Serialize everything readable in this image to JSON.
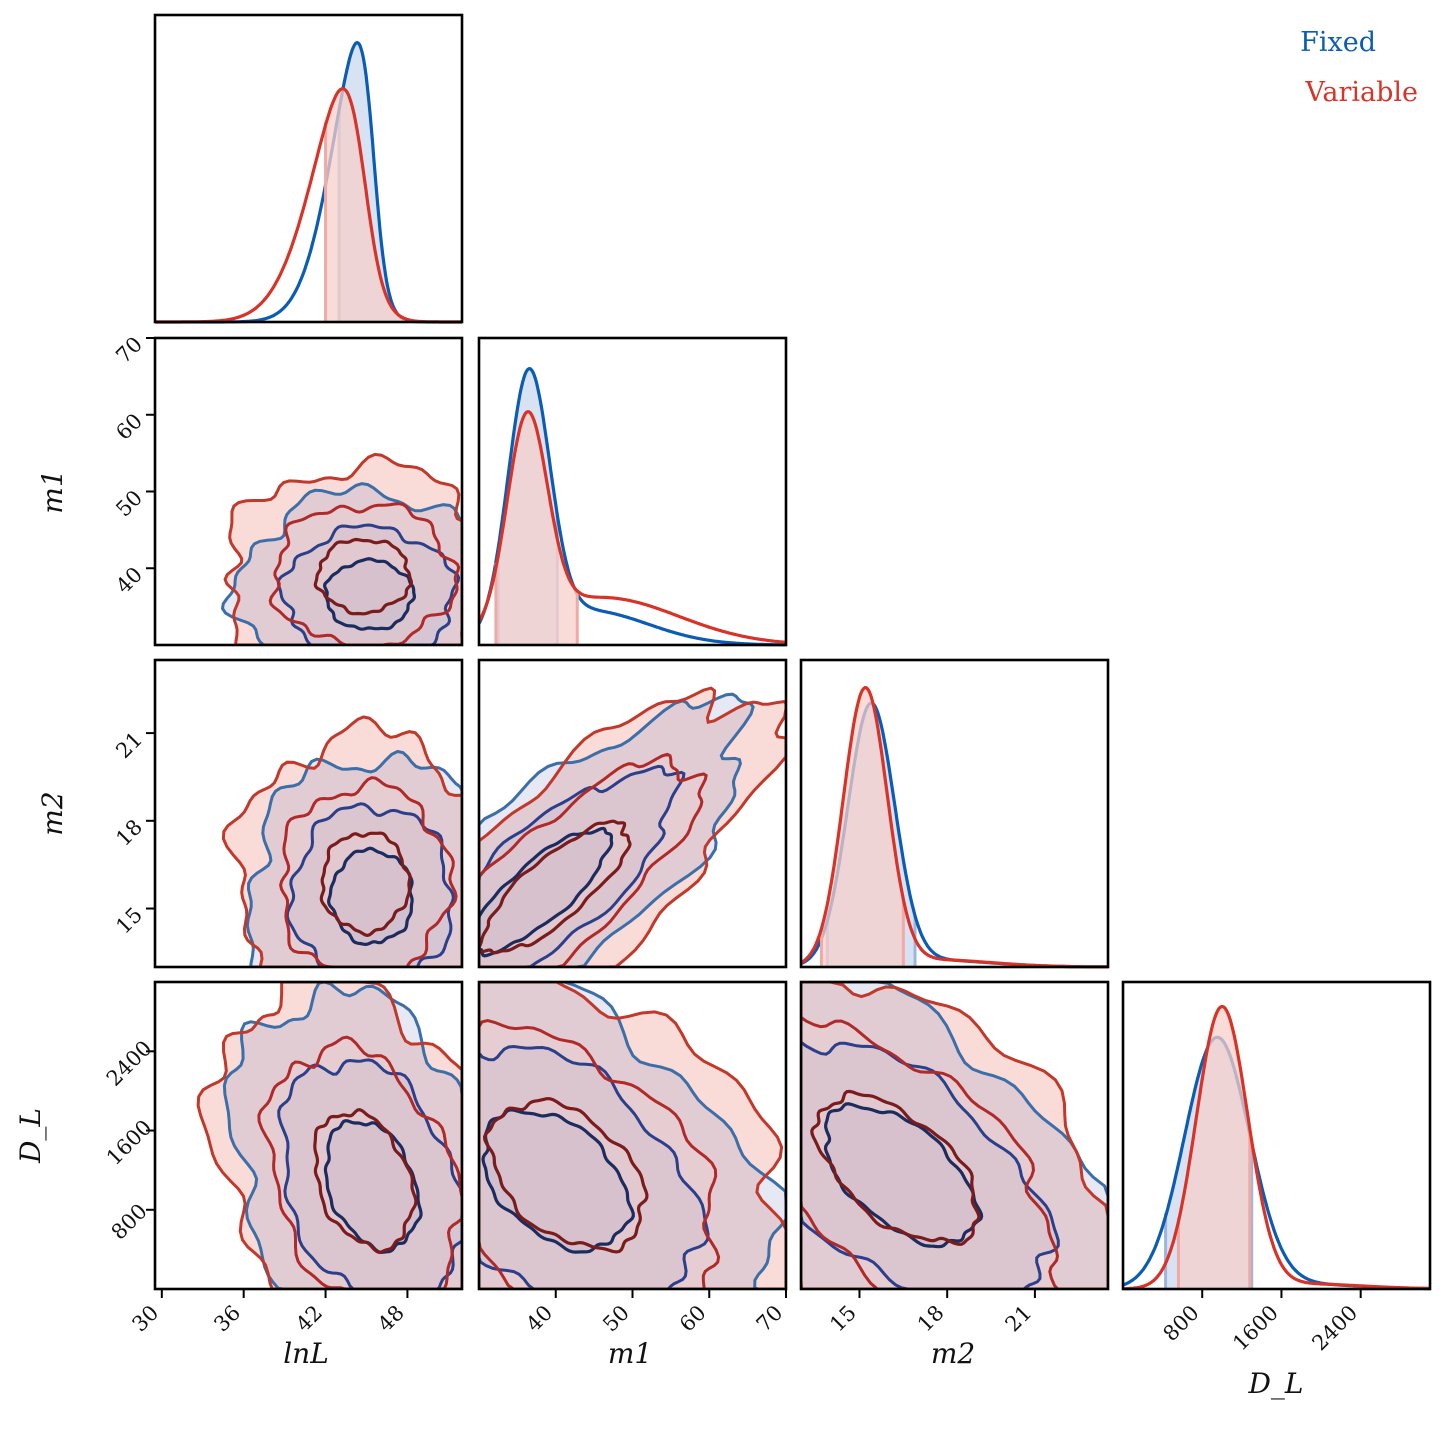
{
  "colors": {
    "fixed": "#0b5cb5",
    "variable": "#d93328",
    "fixed_fill": "#c9d8ef",
    "variable_fill": "#f7cfcb"
  },
  "chart_data": {
    "type": "corner",
    "parameters": [
      {
        "name": "lnL",
        "label": "lnL",
        "range": [
          29.5,
          52
        ],
        "ticks": [
          "30",
          "36",
          "42",
          "48"
        ]
      },
      {
        "name": "m1",
        "label": "m1",
        "range": [
          30,
          70
        ],
        "ticks": [
          "40",
          "50",
          "60",
          "70"
        ]
      },
      {
        "name": "m2",
        "label": "m2",
        "range": [
          13,
          23.5
        ],
        "ticks": [
          "15",
          "18",
          "21"
        ]
      },
      {
        "name": "D_L",
        "label": "D_L",
        "range": [
          0,
          3100
        ],
        "ticks": [
          "800",
          "1600",
          "2400"
        ]
      }
    ],
    "series": [
      {
        "name": "Fixed",
        "color": "#0b5cb5",
        "marginals": [
          {
            "mean": 45.5,
            "sd": 2.6,
            "skew": -3.0,
            "hdi": [
              43.0,
              47.8
            ]
          },
          {
            "mean": 36.5,
            "sd": 2.7,
            "skew": 0,
            "tail": {
              "mean": 44,
              "sd": 8,
              "weight": 0.28
            },
            "hdi": [
              32.5,
              40.2
            ]
          },
          {
            "mean": 15.4,
            "sd": 0.8,
            "skew": 0,
            "tail": {
              "mean": 17.5,
              "sd": 2.0,
              "weight": 0.07
            },
            "hdi": [
              13.9,
              16.9
            ]
          },
          {
            "mean": 950,
            "sd": 330,
            "skew": 0,
            "tail": {
              "mean": 1800,
              "sd": 600,
              "weight": 0.05
            },
            "hdi": [
              430,
              1300
            ]
          }
        ]
      },
      {
        "name": "Variable",
        "color": "#d93328",
        "marginals": [
          {
            "mean": 44.8,
            "sd": 3.2,
            "skew": -2.5,
            "hdi": [
              42.0,
              47.7
            ]
          },
          {
            "mean": 36.3,
            "sd": 2.6,
            "skew": 0,
            "tail": {
              "mean": 46,
              "sd": 10,
              "weight": 0.4
            },
            "hdi": [
              32.2,
              42.8
            ]
          },
          {
            "mean": 15.2,
            "sd": 0.75,
            "skew": 0,
            "tail": {
              "mean": 17.5,
              "sd": 2.0,
              "weight": 0.07
            },
            "hdi": [
              13.7,
              16.5
            ]
          },
          {
            "mean": 1000,
            "sd": 260,
            "skew": 0,
            "tail": {
              "mean": 1800,
              "sd": 600,
              "weight": 0.05
            },
            "hdi": [
              560,
              1280
            ]
          }
        ]
      }
    ],
    "legend": {
      "position": "top-right",
      "entries": [
        "Fixed",
        "Variable"
      ]
    }
  }
}
